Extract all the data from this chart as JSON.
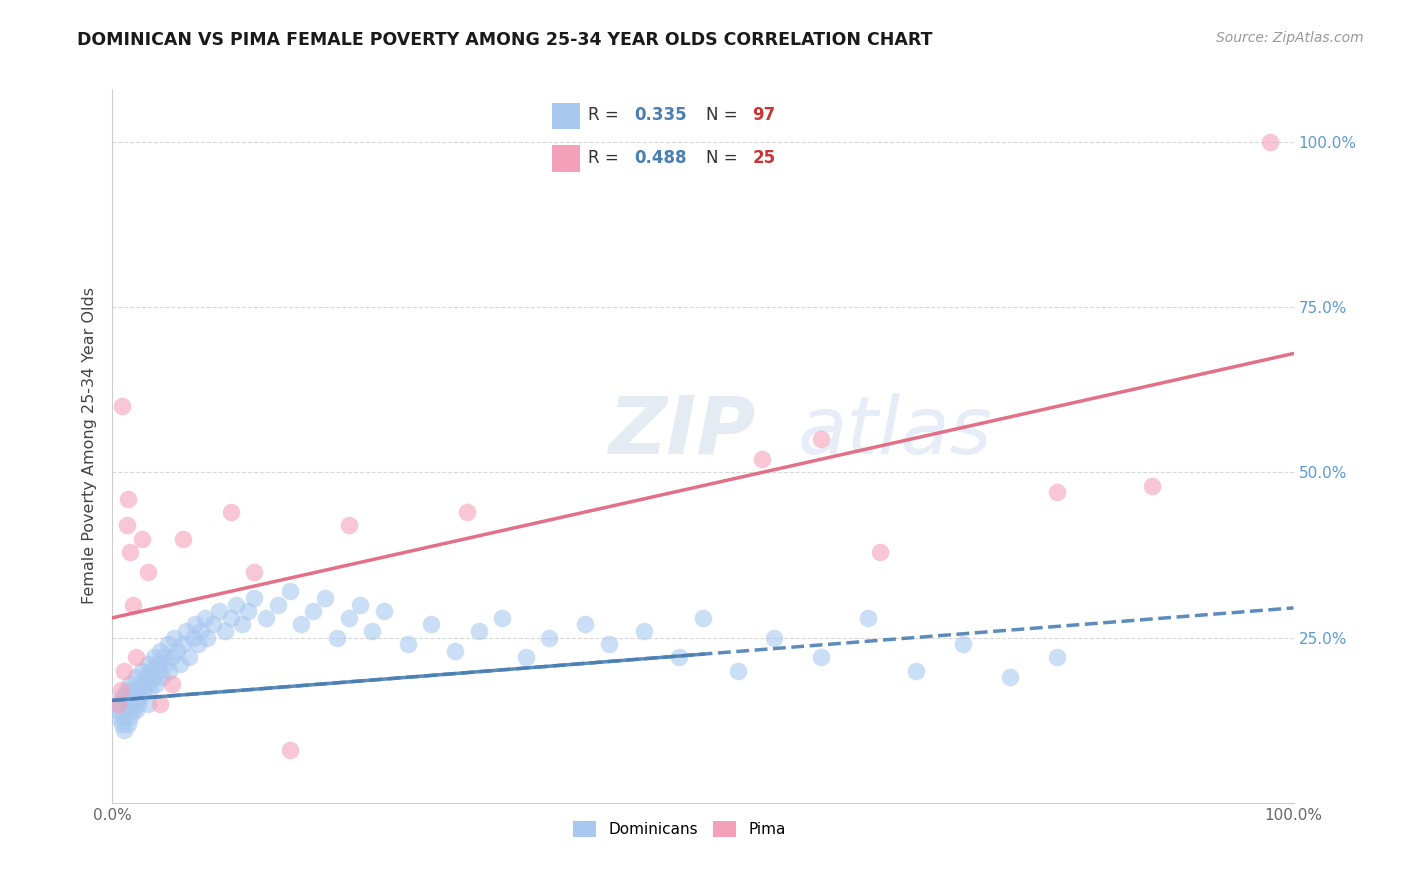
{
  "title": "DOMINICAN VS PIMA FEMALE POVERTY AMONG 25-34 YEAR OLDS CORRELATION CHART",
  "source": "Source: ZipAtlas.com",
  "ylabel": "Female Poverty Among 25-34 Year Olds",
  "watermark_zip": "ZIP",
  "watermark_atlas": "atlas",
  "dominican_color": "#a8c8f0",
  "pima_color": "#f4a0b8",
  "dominican_line_color": "#4a7fb5",
  "pima_line_color": "#e0607a",
  "right_axis_color": "#5b9bd5",
  "dominican_scatter": [
    [
      0.005,
      0.13
    ],
    [
      0.005,
      0.14
    ],
    [
      0.007,
      0.15
    ],
    [
      0.008,
      0.12
    ],
    [
      0.008,
      0.16
    ],
    [
      0.01,
      0.11
    ],
    [
      0.01,
      0.13
    ],
    [
      0.01,
      0.16
    ],
    [
      0.012,
      0.14
    ],
    [
      0.012,
      0.17
    ],
    [
      0.013,
      0.12
    ],
    [
      0.013,
      0.15
    ],
    [
      0.015,
      0.13
    ],
    [
      0.015,
      0.18
    ],
    [
      0.017,
      0.14
    ],
    [
      0.017,
      0.16
    ],
    [
      0.018,
      0.15
    ],
    [
      0.019,
      0.17
    ],
    [
      0.02,
      0.14
    ],
    [
      0.02,
      0.16
    ],
    [
      0.02,
      0.19
    ],
    [
      0.022,
      0.15
    ],
    [
      0.022,
      0.17
    ],
    [
      0.023,
      0.16
    ],
    [
      0.025,
      0.18
    ],
    [
      0.025,
      0.2
    ],
    [
      0.027,
      0.17
    ],
    [
      0.028,
      0.19
    ],
    [
      0.03,
      0.15
    ],
    [
      0.03,
      0.18
    ],
    [
      0.03,
      0.21
    ],
    [
      0.032,
      0.17
    ],
    [
      0.033,
      0.2
    ],
    [
      0.035,
      0.19
    ],
    [
      0.035,
      0.22
    ],
    [
      0.037,
      0.18
    ],
    [
      0.038,
      0.21
    ],
    [
      0.04,
      0.2
    ],
    [
      0.04,
      0.23
    ],
    [
      0.042,
      0.19
    ],
    [
      0.043,
      0.22
    ],
    [
      0.045,
      0.21
    ],
    [
      0.047,
      0.24
    ],
    [
      0.048,
      0.2
    ],
    [
      0.05,
      0.22
    ],
    [
      0.052,
      0.25
    ],
    [
      0.055,
      0.23
    ],
    [
      0.057,
      0.21
    ],
    [
      0.06,
      0.24
    ],
    [
      0.062,
      0.26
    ],
    [
      0.065,
      0.22
    ],
    [
      0.068,
      0.25
    ],
    [
      0.07,
      0.27
    ],
    [
      0.072,
      0.24
    ],
    [
      0.075,
      0.26
    ],
    [
      0.078,
      0.28
    ],
    [
      0.08,
      0.25
    ],
    [
      0.085,
      0.27
    ],
    [
      0.09,
      0.29
    ],
    [
      0.095,
      0.26
    ],
    [
      0.1,
      0.28
    ],
    [
      0.105,
      0.3
    ],
    [
      0.11,
      0.27
    ],
    [
      0.115,
      0.29
    ],
    [
      0.12,
      0.31
    ],
    [
      0.13,
      0.28
    ],
    [
      0.14,
      0.3
    ],
    [
      0.15,
      0.32
    ],
    [
      0.16,
      0.27
    ],
    [
      0.17,
      0.29
    ],
    [
      0.18,
      0.31
    ],
    [
      0.19,
      0.25
    ],
    [
      0.2,
      0.28
    ],
    [
      0.21,
      0.3
    ],
    [
      0.22,
      0.26
    ],
    [
      0.23,
      0.29
    ],
    [
      0.25,
      0.24
    ],
    [
      0.27,
      0.27
    ],
    [
      0.29,
      0.23
    ],
    [
      0.31,
      0.26
    ],
    [
      0.33,
      0.28
    ],
    [
      0.35,
      0.22
    ],
    [
      0.37,
      0.25
    ],
    [
      0.4,
      0.27
    ],
    [
      0.42,
      0.24
    ],
    [
      0.45,
      0.26
    ],
    [
      0.48,
      0.22
    ],
    [
      0.5,
      0.28
    ],
    [
      0.53,
      0.2
    ],
    [
      0.56,
      0.25
    ],
    [
      0.6,
      0.22
    ],
    [
      0.64,
      0.28
    ],
    [
      0.68,
      0.2
    ],
    [
      0.72,
      0.24
    ],
    [
      0.76,
      0.19
    ],
    [
      0.8,
      0.22
    ]
  ],
  "pima_scatter": [
    [
      0.005,
      0.15
    ],
    [
      0.007,
      0.17
    ],
    [
      0.008,
      0.6
    ],
    [
      0.01,
      0.2
    ],
    [
      0.012,
      0.42
    ],
    [
      0.013,
      0.46
    ],
    [
      0.015,
      0.38
    ],
    [
      0.017,
      0.3
    ],
    [
      0.02,
      0.22
    ],
    [
      0.025,
      0.4
    ],
    [
      0.03,
      0.35
    ],
    [
      0.04,
      0.15
    ],
    [
      0.05,
      0.18
    ],
    [
      0.06,
      0.4
    ],
    [
      0.1,
      0.44
    ],
    [
      0.12,
      0.35
    ],
    [
      0.15,
      0.08
    ],
    [
      0.2,
      0.42
    ],
    [
      0.3,
      0.44
    ],
    [
      0.55,
      0.52
    ],
    [
      0.6,
      0.55
    ],
    [
      0.65,
      0.38
    ],
    [
      0.8,
      0.47
    ],
    [
      0.88,
      0.48
    ],
    [
      0.98,
      1.0
    ]
  ],
  "dom_line_x0": 0.0,
  "dom_line_y0": 0.155,
  "dom_line_x1": 1.0,
  "dom_line_y1": 0.295,
  "pima_line_x0": 0.0,
  "pima_line_y0": 0.28,
  "pima_line_x1": 1.0,
  "pima_line_y1": 0.68,
  "xlim": [
    0.0,
    1.0
  ],
  "ylim": [
    0.0,
    1.08
  ],
  "yticks": [
    0.25,
    0.5,
    0.75,
    1.0
  ],
  "ytick_labels": [
    "25.0%",
    "50.0%",
    "75.0%",
    "100.0%"
  ],
  "xticks": [
    0.0,
    1.0
  ],
  "xtick_labels": [
    "0.0%",
    "100.0%"
  ],
  "background_color": "#ffffff",
  "grid_color": "#d8d8d8",
  "legend_box_color": "#e8f0fa",
  "legend_box_edge": "#b0c4de"
}
